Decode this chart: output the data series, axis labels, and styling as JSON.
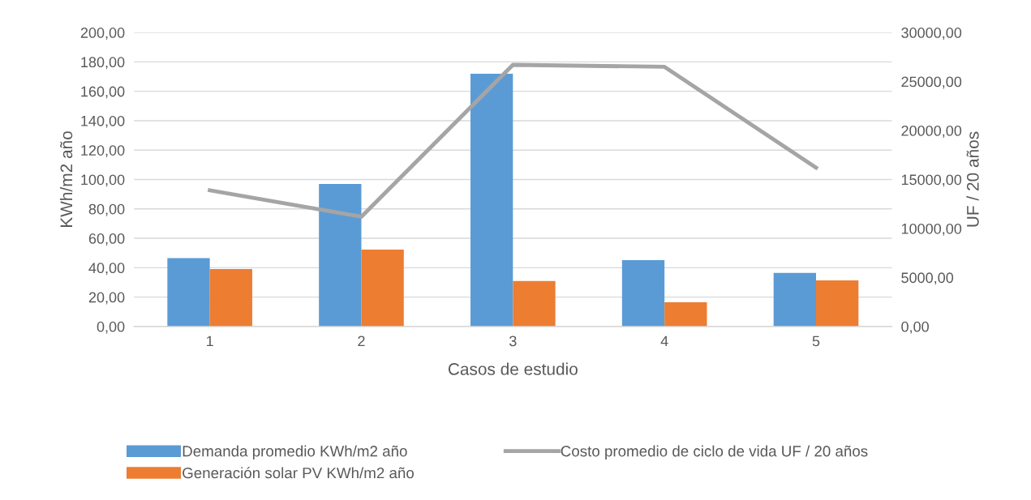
{
  "chart_data": {
    "type": "bar",
    "xlabel": "Casos de estudio",
    "ylabel": "KWh/m2 año",
    "y2label": "UF / 20 años",
    "categories": [
      "1",
      "2",
      "3",
      "4",
      "5"
    ],
    "series": [
      {
        "name": "Demanda promedio KWh/m2 año",
        "color": "#5b9bd5",
        "values": [
          46.5,
          97,
          172,
          45.2,
          36.4
        ]
      },
      {
        "name": "Generación solar PV KWh/m2 año",
        "color": "#ed7d31",
        "values": [
          39.1,
          52.3,
          30.9,
          16.5,
          31.4
        ]
      },
      {
        "name": "Costo promedio de ciclo de vida UF / 20 años",
        "color": "#a5a5a5",
        "type": "line",
        "axis": "y2",
        "values": [
          13900,
          11200,
          26700,
          26500,
          16200
        ]
      }
    ],
    "ylim": [
      0,
      200
    ],
    "yticks": [
      {
        "value": 0,
        "label": "0,00"
      },
      {
        "value": 20,
        "label": "20,00"
      },
      {
        "value": 40,
        "label": "40,00"
      },
      {
        "value": 60,
        "label": "60,00"
      },
      {
        "value": 80,
        "label": "80,00"
      },
      {
        "value": 100,
        "label": "100,00"
      },
      {
        "value": 120,
        "label": "120,00"
      },
      {
        "value": 140,
        "label": "140,00"
      },
      {
        "value": 160,
        "label": "160,00"
      },
      {
        "value": 180,
        "label": "180,00"
      },
      {
        "value": 200,
        "label": "200,00"
      }
    ],
    "y2lim": [
      0,
      30000
    ],
    "y2ticks": [
      {
        "value": 0,
        "label": "0,00"
      },
      {
        "value": 5000,
        "label": "5000,00"
      },
      {
        "value": 10000,
        "label": "10000,00"
      },
      {
        "value": 15000,
        "label": "15000,00"
      },
      {
        "value": 20000,
        "label": "20000,00"
      },
      {
        "value": 25000,
        "label": "25000,00"
      },
      {
        "value": 30000,
        "label": "30000,00"
      }
    ],
    "grid": "y",
    "legend": "bottom"
  }
}
